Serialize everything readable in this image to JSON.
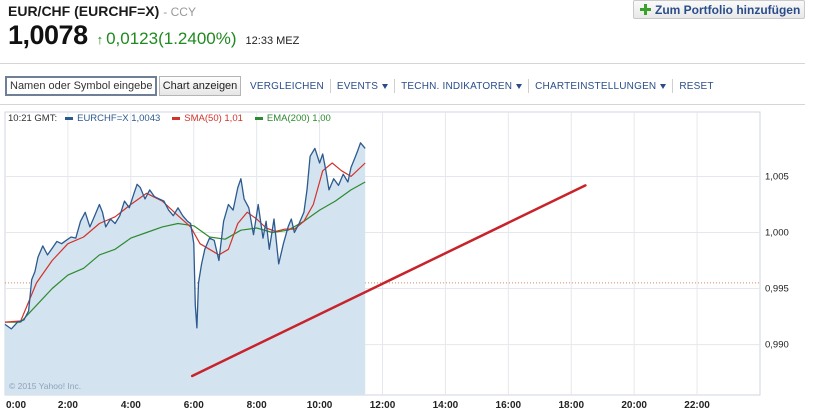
{
  "header": {
    "title": "EUR/CHF (EURCHF=X)",
    "exchange": "- CCY",
    "portfolio_button": "Zum Portfolio hinzufügen"
  },
  "quote": {
    "price": "1,0078",
    "change": "0,0123",
    "change_pct": "(1.2400%)",
    "time": "12:33 MEZ",
    "up_color": "#1f8a1f"
  },
  "toolbar": {
    "input_placeholder": "Namen oder Symbol eingeben",
    "chart_button": "Chart anzeigen",
    "links": [
      "VERGLEICHEN",
      "EVENTS",
      "TECHN. INDIKATOREN",
      "CHARTEINSTELLUNGEN",
      "RESET"
    ]
  },
  "legend": {
    "time": "10:21 GMT:",
    "items": [
      {
        "label": "EURCHF=X 1,0043",
        "color": "#2d5a8e"
      },
      {
        "label": "SMA(50) 1,01",
        "color": "#d2332a"
      },
      {
        "label": "EMA(200) 1,00",
        "color": "#2e8a2e"
      }
    ]
  },
  "chart_data": {
    "type": "line",
    "title": "",
    "xlabel": "",
    "ylabel": "",
    "x_ticks": [
      "0:00",
      "2:00",
      "4:00",
      "6:00",
      "8:00",
      "10:00",
      "12:00",
      "14:00",
      "16:00",
      "18:00",
      "20:00",
      "22:00"
    ],
    "y_ticks": [
      "1,005",
      "1,000",
      "0,995",
      "0,990"
    ],
    "y_tick_values": [
      1.005,
      1.0,
      0.995,
      0.99
    ],
    "ylim": [
      0.9855,
      1.0095
    ],
    "xlim": [
      0,
      24
    ],
    "reference_line": 0.9955,
    "copyright": "© 2015 Yahoo! Inc.",
    "series": [
      {
        "name": "EURCHF=X",
        "color": "#2d5a8e",
        "fill": "#d3e3f0",
        "x": [
          0.0,
          0.2,
          0.4,
          0.6,
          0.75,
          0.85,
          0.95,
          1.05,
          1.2,
          1.35,
          1.5,
          1.65,
          1.8,
          1.95,
          2.1,
          2.25,
          2.4,
          2.55,
          2.7,
          2.85,
          3.0,
          3.1,
          3.2,
          3.35,
          3.5,
          3.65,
          3.8,
          3.95,
          4.1,
          4.2,
          4.3,
          4.45,
          4.6,
          4.75,
          4.9,
          5.05,
          5.2,
          5.35,
          5.5,
          5.65,
          5.8,
          5.9,
          6.0,
          6.05,
          6.1,
          6.15,
          6.25,
          6.35,
          6.5,
          6.65,
          6.8,
          6.95,
          7.1,
          7.25,
          7.4,
          7.5,
          7.6,
          7.75,
          7.9,
          8.05,
          8.2,
          8.3,
          8.4,
          8.55,
          8.7,
          8.85,
          9.0,
          9.1,
          9.2,
          9.35,
          9.5,
          9.6,
          9.7,
          9.85,
          10.0,
          10.1,
          10.2,
          10.3,
          10.45,
          10.6,
          10.75,
          10.9,
          11.0,
          11.1,
          11.2,
          11.3,
          11.45
        ],
        "y": [
          0.9918,
          0.9914,
          0.992,
          0.9922,
          0.993,
          0.9958,
          0.9965,
          0.9978,
          0.9988,
          0.998,
          0.9986,
          0.9992,
          0.999,
          0.9993,
          0.9996,
          0.9995,
          1.001,
          1.0018,
          1.0005,
          1.0015,
          1.0025,
          1.0018,
          1.0005,
          1.0012,
          1.0008,
          1.0015,
          1.0028,
          1.0022,
          1.0035,
          1.0043,
          1.004,
          1.003,
          1.0038,
          1.0032,
          1.003,
          1.0028,
          1.002,
          1.0015,
          1.0022,
          1.0015,
          1.001,
          1.0008,
          0.999,
          0.9935,
          0.9915,
          0.9955,
          0.9972,
          0.9985,
          0.9995,
          0.9993,
          0.9975,
          1.001,
          1.0025,
          1.002,
          1.004,
          1.0048,
          1.003,
          1.0022,
          0.9998,
          1.0025,
          0.9995,
          1.001,
          0.9985,
          1.0012,
          0.9972,
          0.999,
          1.0005,
          1.0012,
          1.0,
          1.0008,
          1.0018,
          1.0038,
          1.0068,
          1.0075,
          1.0062,
          1.007,
          1.0055,
          1.0038,
          1.0048,
          1.0042,
          1.0052,
          1.0045,
          1.0058,
          1.0065,
          1.0072,
          1.008,
          1.0075
        ]
      },
      {
        "name": "SMA(50)",
        "color": "#d2332a",
        "x": [
          0.0,
          0.5,
          1.0,
          1.5,
          2.0,
          2.5,
          3.0,
          3.5,
          4.0,
          4.5,
          5.0,
          5.5,
          5.9,
          6.2,
          6.5,
          6.8,
          7.1,
          7.4,
          7.7,
          8.0,
          8.3,
          8.6,
          8.9,
          9.2,
          9.5,
          9.8,
          10.1,
          10.4,
          10.7,
          11.0,
          11.45
        ],
        "y": [
          0.992,
          0.9921,
          0.9955,
          0.9975,
          0.999,
          0.9996,
          1.0008,
          1.0014,
          1.0025,
          1.0035,
          1.0028,
          1.0015,
          1.0005,
          0.999,
          0.9985,
          0.998,
          0.9985,
          1.0008,
          1.0018,
          1.0012,
          1.0004,
          1.0001,
          1.0003,
          1.0003,
          1.001,
          1.0025,
          1.0055,
          1.0062,
          1.0055,
          1.005,
          1.0062
        ]
      },
      {
        "name": "EMA(200)",
        "color": "#2e8a2e",
        "x": [
          0.0,
          0.5,
          1.0,
          1.5,
          2.0,
          2.5,
          3.0,
          3.5,
          4.0,
          4.5,
          5.0,
          5.5,
          6.0,
          6.5,
          7.0,
          7.5,
          8.0,
          8.5,
          9.0,
          9.5,
          10.0,
          10.5,
          11.0,
          11.45
        ],
        "y": [
          0.992,
          0.992,
          0.9935,
          0.995,
          0.9962,
          0.9968,
          0.998,
          0.9985,
          0.9995,
          1.0,
          1.0005,
          1.0008,
          1.0006,
          0.9996,
          0.9994,
          1.0002,
          1.0004,
          1.0,
          1.0002,
          1.001,
          1.002,
          1.0028,
          1.0038,
          1.0045
        ]
      }
    ],
    "annotation_line": {
      "color": "#c8232b",
      "x": [
        5.95,
        18.45
      ],
      "y": [
        0.9872,
        1.0042
      ]
    }
  }
}
